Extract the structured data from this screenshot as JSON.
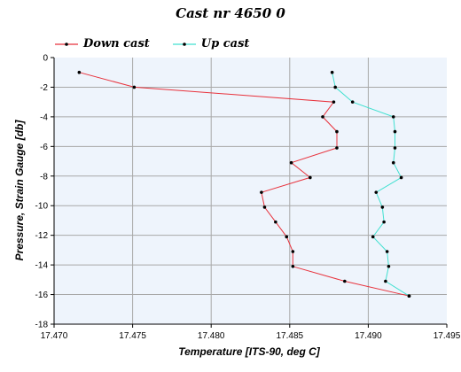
{
  "chart_data": {
    "type": "line",
    "title": "Cast nr 4650 0",
    "xlabel": "Temperature [ITS-90, deg C]",
    "ylabel": "Pressure, Strain Gauge [db]",
    "xlim": [
      17.47,
      17.495
    ],
    "ylim": [
      -18,
      0
    ],
    "x_ticks": [
      "17.470",
      "17.475",
      "17.480",
      "17.485",
      "17.490",
      "17.495"
    ],
    "y_ticks": [
      "0",
      "-2",
      "-4",
      "-6",
      "-8",
      "-10",
      "-12",
      "-14",
      "-16",
      "-18"
    ],
    "grid": true,
    "legend_position": "top-left",
    "series": [
      {
        "name": "Down cast",
        "color": "#e8323c",
        "points": [
          [
            17.4716,
            -1.0
          ],
          [
            17.4751,
            -2.0
          ],
          [
            17.4878,
            -3.0
          ],
          [
            17.4871,
            -4.0
          ],
          [
            17.488,
            -5.0
          ],
          [
            17.488,
            -6.1
          ],
          [
            17.4851,
            -7.1
          ],
          [
            17.4863,
            -8.1
          ],
          [
            17.4832,
            -9.1
          ],
          [
            17.4834,
            -10.1
          ],
          [
            17.4841,
            -11.1
          ],
          [
            17.4848,
            -12.1
          ],
          [
            17.4852,
            -13.1
          ],
          [
            17.4852,
            -14.1
          ],
          [
            17.4885,
            -15.1
          ],
          [
            17.4926,
            -16.1
          ]
        ]
      },
      {
        "name": "Up cast",
        "color": "#40e0d0",
        "points": [
          [
            17.4877,
            -1.0
          ],
          [
            17.4879,
            -2.0
          ],
          [
            17.489,
            -3.0
          ],
          [
            17.4916,
            -4.0
          ],
          [
            17.4917,
            -5.0
          ],
          [
            17.4917,
            -6.1
          ],
          [
            17.4916,
            -7.1
          ],
          [
            17.4921,
            -8.1
          ],
          [
            17.4905,
            -9.1
          ],
          [
            17.4909,
            -10.1
          ],
          [
            17.491,
            -11.1
          ],
          [
            17.4903,
            -12.1
          ],
          [
            17.4912,
            -13.1
          ],
          [
            17.4913,
            -14.1
          ],
          [
            17.4911,
            -15.1
          ],
          [
            17.4926,
            -16.1
          ]
        ]
      }
    ]
  }
}
